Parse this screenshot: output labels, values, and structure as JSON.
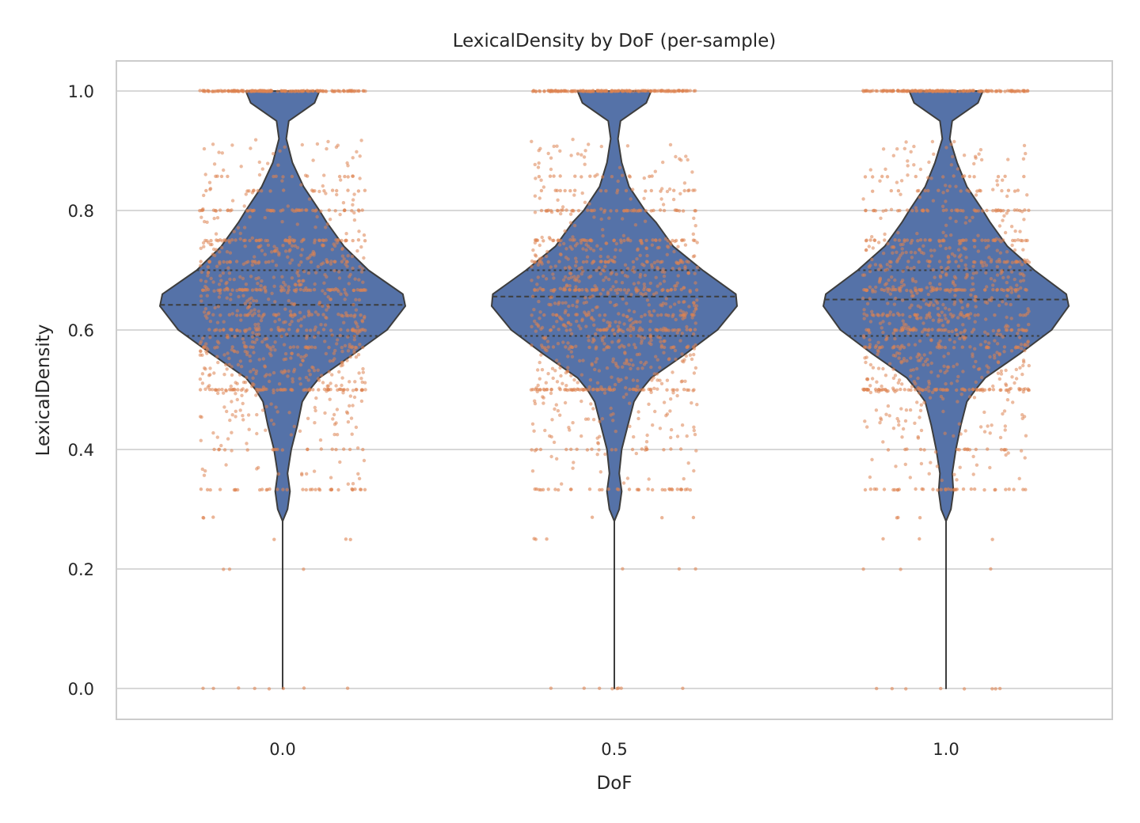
{
  "chart_data": {
    "type": "violin",
    "title": "LexicalDensity by DoF (per-sample)",
    "xlabel": "DoF",
    "ylabel": "LexicalDensity",
    "categories": [
      "0.0",
      "0.5",
      "1.0"
    ],
    "ylim": [
      -0.05,
      1.05
    ],
    "yticks": [
      0.0,
      0.2,
      0.4,
      0.6,
      0.8,
      1.0
    ],
    "ytick_labels": [
      "0.0",
      "0.2",
      "0.4",
      "0.6",
      "0.8",
      "1.0"
    ],
    "grid": "horizontal",
    "colors": {
      "violin": "#5572a8",
      "points": "#dd8452",
      "edge": "#3d3d3d",
      "grid": "#cccccc"
    },
    "violins": [
      {
        "category": "0.0",
        "median": 0.642,
        "q1": 0.59,
        "q3": 0.7,
        "density": [
          [
            0.0,
            0.0
          ],
          [
            0.28,
            0.0
          ],
          [
            0.3,
            0.04
          ],
          [
            0.33,
            0.06
          ],
          [
            0.36,
            0.04
          ],
          [
            0.4,
            0.07
          ],
          [
            0.44,
            0.12
          ],
          [
            0.48,
            0.16
          ],
          [
            0.5,
            0.22
          ],
          [
            0.52,
            0.3
          ],
          [
            0.56,
            0.58
          ],
          [
            0.6,
            0.85
          ],
          [
            0.64,
            1.0
          ],
          [
            0.66,
            0.98
          ],
          [
            0.7,
            0.7
          ],
          [
            0.74,
            0.5
          ],
          [
            0.78,
            0.36
          ],
          [
            0.8,
            0.3
          ],
          [
            0.84,
            0.17
          ],
          [
            0.88,
            0.08
          ],
          [
            0.92,
            0.03
          ],
          [
            0.95,
            0.05
          ],
          [
            0.98,
            0.26
          ],
          [
            1.0,
            0.3
          ]
        ]
      },
      {
        "category": "0.5",
        "median": 0.656,
        "q1": 0.59,
        "q3": 0.7,
        "density": [
          [
            0.0,
            0.0
          ],
          [
            0.28,
            0.0
          ],
          [
            0.3,
            0.04
          ],
          [
            0.33,
            0.06
          ],
          [
            0.36,
            0.04
          ],
          [
            0.4,
            0.06
          ],
          [
            0.44,
            0.11
          ],
          [
            0.48,
            0.16
          ],
          [
            0.5,
            0.22
          ],
          [
            0.52,
            0.3
          ],
          [
            0.56,
            0.58
          ],
          [
            0.6,
            0.84
          ],
          [
            0.64,
            1.0
          ],
          [
            0.66,
            0.99
          ],
          [
            0.7,
            0.72
          ],
          [
            0.74,
            0.48
          ],
          [
            0.78,
            0.34
          ],
          [
            0.8,
            0.25
          ],
          [
            0.84,
            0.12
          ],
          [
            0.88,
            0.06
          ],
          [
            0.92,
            0.03
          ],
          [
            0.95,
            0.05
          ],
          [
            0.98,
            0.26
          ],
          [
            1.0,
            0.3
          ]
        ]
      },
      {
        "category": "1.0",
        "median": 0.651,
        "q1": 0.59,
        "q3": 0.7,
        "density": [
          [
            0.0,
            0.0
          ],
          [
            0.28,
            0.0
          ],
          [
            0.3,
            0.04
          ],
          [
            0.33,
            0.06
          ],
          [
            0.36,
            0.05
          ],
          [
            0.4,
            0.08
          ],
          [
            0.44,
            0.12
          ],
          [
            0.48,
            0.17
          ],
          [
            0.5,
            0.24
          ],
          [
            0.52,
            0.32
          ],
          [
            0.56,
            0.6
          ],
          [
            0.6,
            0.86
          ],
          [
            0.64,
            1.0
          ],
          [
            0.66,
            0.98
          ],
          [
            0.7,
            0.72
          ],
          [
            0.74,
            0.5
          ],
          [
            0.78,
            0.36
          ],
          [
            0.8,
            0.3
          ],
          [
            0.84,
            0.17
          ],
          [
            0.88,
            0.09
          ],
          [
            0.92,
            0.03
          ],
          [
            0.95,
            0.05
          ],
          [
            0.98,
            0.26
          ],
          [
            1.0,
            0.3
          ]
        ]
      }
    ],
    "strip_points": {
      "jitter": 0.25,
      "levels": [
        {
          "y": 1.0,
          "n": 160
        },
        {
          "y": 0.8,
          "n": 45
        },
        {
          "y": 0.75,
          "n": 40
        },
        {
          "y": 0.5,
          "n": 60
        },
        {
          "y": 0.333,
          "n": 35
        },
        {
          "y": 0.4,
          "n": 18
        },
        {
          "y": 0.833,
          "n": 18
        },
        {
          "y": 0.857,
          "n": 14
        },
        {
          "y": 0.667,
          "n": 45
        },
        {
          "y": 0.6,
          "n": 35
        },
        {
          "y": 0.714,
          "n": 25
        },
        {
          "y": 0.625,
          "n": 25
        },
        {
          "y": 0.571,
          "n": 22
        },
        {
          "y": 0.0,
          "n": 8
        },
        {
          "y": 0.25,
          "n": 3
        },
        {
          "y": 0.2,
          "n": 3
        },
        {
          "y": 0.286,
          "n": 3
        }
      ],
      "continuous": [
        {
          "from": 0.5,
          "to": 0.75,
          "n": 520
        },
        {
          "from": 0.42,
          "to": 0.5,
          "n": 70
        },
        {
          "from": 0.75,
          "to": 0.92,
          "n": 90
        },
        {
          "from": 0.34,
          "to": 0.42,
          "n": 25
        }
      ]
    }
  }
}
